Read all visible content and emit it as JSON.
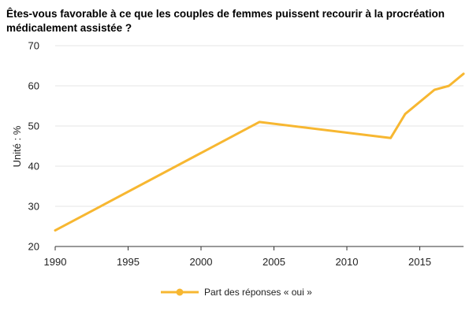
{
  "chart_data": {
    "type": "line",
    "title": "Êtes-vous favorable à ce que les couples de femmes puissent recourir à la procréation médicalement assistée ?",
    "xlabel": "",
    "ylabel": "Unité : %",
    "xlim": [
      1990,
      2018
    ],
    "ylim": [
      20,
      70
    ],
    "x_ticks": [
      1990,
      1995,
      2000,
      2005,
      2010,
      2015
    ],
    "y_ticks": [
      20,
      30,
      40,
      50,
      60,
      70
    ],
    "grid": true,
    "legend_position": "bottom-center",
    "series": [
      {
        "name": "Part des réponses « oui »",
        "color": "#F7B731",
        "x": [
          1990,
          2004,
          2013,
          2014,
          2016,
          2017,
          2018
        ],
        "y": [
          24,
          51,
          47,
          53,
          59,
          60,
          63
        ]
      }
    ]
  }
}
